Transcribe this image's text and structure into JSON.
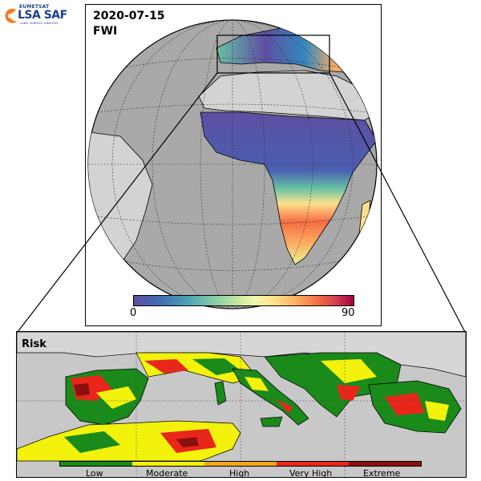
{
  "logo": {
    "org": "EUMETSAT",
    "name": "LSA SAF",
    "tagline": "LAND SURFACE ANALYSIS",
    "colors": {
      "orange": "#f07d1a",
      "blue": "#1d3f8a"
    }
  },
  "globe": {
    "date": "2020-07-15",
    "variable": "FWI"
  },
  "fwi_colorbar": {
    "min_label": "0",
    "max_label": "90",
    "colormap": [
      "#5e4fa2",
      "#3288bd",
      "#66c2a5",
      "#abdda4",
      "#e6f598",
      "#ffffbf",
      "#fee08b",
      "#fdae61",
      "#f46d43",
      "#d53e4f",
      "#9e0142"
    ]
  },
  "zoom": {
    "title": "Risk",
    "classes": [
      {
        "label": "Low",
        "color": "#1a8a1a"
      },
      {
        "label": "Moderate",
        "color": "#f2f20c"
      },
      {
        "label": "High",
        "color": "#f7a41d"
      },
      {
        "label": "Very High",
        "color": "#e8271a"
      },
      {
        "label": "Extreme",
        "color": "#8c0f0f"
      }
    ]
  },
  "colors": {
    "ocean": "#c8c8c8",
    "no_data_land": "#d3d3d3",
    "coastline": "#000000",
    "graticule": "#333333"
  }
}
